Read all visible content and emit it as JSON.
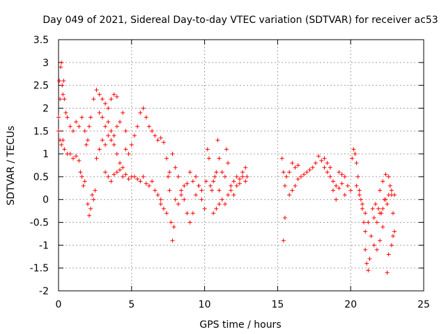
{
  "chart_data": {
    "type": "scatter",
    "title": "Day 049 of 2021, Sidereal Day-to-day VTEC variation (SDTVAR) for receiver ac53",
    "xlabel": "GPS time / hours",
    "ylabel": "SDTVAR / TECUs",
    "xlim": [
      0,
      25
    ],
    "ylim": [
      -2,
      3.5
    ],
    "xticks": [
      "0",
      "5",
      "10",
      "15",
      "20",
      "25"
    ],
    "yticks": [
      "-2",
      "-1.5",
      "-1",
      "-0.5",
      "0",
      "0.5",
      "1",
      "1.5",
      "2",
      "2.5",
      "3",
      "3.5"
    ],
    "grid": true,
    "marker": "+",
    "series": [
      {
        "name": "SDTVAR",
        "color": "#ff0000",
        "points": [
          [
            0.0,
            1.8
          ],
          [
            0.05,
            2.6
          ],
          [
            0.1,
            2.2
          ],
          [
            0.15,
            2.9
          ],
          [
            0.2,
            3.0
          ],
          [
            0.25,
            2.5
          ],
          [
            0.3,
            2.3
          ],
          [
            0.35,
            2.6
          ],
          [
            0.4,
            2.2
          ],
          [
            0.5,
            1.9
          ],
          [
            0.0,
            1.5
          ],
          [
            0.1,
            1.3
          ],
          [
            0.2,
            1.2
          ],
          [
            0.3,
            1.3
          ],
          [
            0.4,
            1.1
          ],
          [
            0.6,
            1.0
          ],
          [
            0.8,
            1.0
          ],
          [
            1.0,
            0.9
          ],
          [
            1.2,
            0.95
          ],
          [
            1.4,
            0.85
          ],
          [
            0.6,
            1.8
          ],
          [
            0.8,
            1.6
          ],
          [
            1.0,
            1.5
          ],
          [
            1.2,
            1.7
          ],
          [
            1.4,
            1.6
          ],
          [
            1.6,
            1.8
          ],
          [
            1.8,
            1.5
          ],
          [
            1.9,
            1.2
          ],
          [
            2.0,
            1.3
          ],
          [
            2.1,
            1.6
          ],
          [
            1.5,
            0.6
          ],
          [
            1.6,
            0.5
          ],
          [
            1.7,
            0.3
          ],
          [
            1.8,
            0.4
          ],
          [
            2.0,
            -0.1
          ],
          [
            2.1,
            -0.35
          ],
          [
            2.2,
            -0.2
          ],
          [
            2.3,
            0.1
          ],
          [
            2.4,
            0.0
          ],
          [
            2.5,
            0.2
          ],
          [
            2.2,
            1.8
          ],
          [
            2.4,
            2.2
          ],
          [
            2.6,
            2.4
          ],
          [
            2.8,
            2.3
          ],
          [
            3.0,
            2.2
          ],
          [
            3.2,
            2.1
          ],
          [
            3.4,
            2.0
          ],
          [
            3.6,
            2.2
          ],
          [
            3.8,
            2.3
          ],
          [
            4.0,
            2.25
          ],
          [
            2.6,
            0.9
          ],
          [
            2.8,
            1.1
          ],
          [
            3.0,
            1.3
          ],
          [
            3.2,
            1.2
          ],
          [
            3.4,
            1.4
          ],
          [
            3.6,
            1.3
          ],
          [
            3.8,
            1.2
          ],
          [
            4.0,
            1.0
          ],
          [
            4.2,
            0.8
          ],
          [
            4.4,
            0.7
          ],
          [
            2.8,
            1.9
          ],
          [
            3.0,
            1.8
          ],
          [
            3.2,
            1.6
          ],
          [
            3.4,
            1.7
          ],
          [
            3.6,
            1.5
          ],
          [
            3.8,
            1.4
          ],
          [
            4.0,
            1.6
          ],
          [
            4.2,
            1.7
          ],
          [
            4.4,
            1.9
          ],
          [
            4.6,
            1.5
          ],
          [
            3.2,
            0.6
          ],
          [
            3.4,
            0.5
          ],
          [
            3.6,
            0.4
          ],
          [
            3.8,
            0.55
          ],
          [
            4.0,
            0.6
          ],
          [
            4.2,
            0.65
          ],
          [
            4.4,
            0.5
          ],
          [
            4.6,
            0.55
          ],
          [
            4.8,
            0.45
          ],
          [
            5.0,
            0.5
          ],
          [
            4.6,
            1.1
          ],
          [
            4.8,
            1.0
          ],
          [
            5.0,
            1.2
          ],
          [
            5.2,
            1.4
          ],
          [
            5.4,
            1.6
          ],
          [
            5.6,
            1.9
          ],
          [
            5.8,
            2.0
          ],
          [
            6.0,
            1.8
          ],
          [
            6.2,
            1.6
          ],
          [
            6.4,
            1.5
          ],
          [
            5.2,
            0.5
          ],
          [
            5.4,
            0.45
          ],
          [
            5.6,
            0.4
          ],
          [
            5.8,
            0.5
          ],
          [
            6.0,
            0.35
          ],
          [
            6.2,
            0.3
          ],
          [
            6.4,
            0.4
          ],
          [
            6.6,
            0.2
          ],
          [
            6.8,
            0.1
          ],
          [
            7.0,
            0.0
          ],
          [
            6.6,
            1.4
          ],
          [
            6.8,
            1.3
          ],
          [
            7.0,
            1.35
          ],
          [
            7.2,
            1.25
          ],
          [
            7.4,
            0.9
          ],
          [
            7.5,
            0.5
          ],
          [
            7.6,
            0.2
          ],
          [
            7.7,
            -0.5
          ],
          [
            7.8,
            -0.9
          ],
          [
            7.9,
            -0.6
          ],
          [
            7.0,
            -0.1
          ],
          [
            7.2,
            -0.2
          ],
          [
            7.4,
            -0.3
          ],
          [
            7.6,
            0.6
          ],
          [
            7.8,
            1.0
          ],
          [
            8.0,
            0.7
          ],
          [
            8.2,
            0.5
          ],
          [
            8.4,
            0.2
          ],
          [
            8.6,
            0.3
          ],
          [
            8.8,
            0.35
          ],
          [
            8.0,
            0.0
          ],
          [
            8.2,
            -0.1
          ],
          [
            8.4,
            0.1
          ],
          [
            8.6,
            0.0
          ],
          [
            8.8,
            -0.3
          ],
          [
            9.0,
            -0.5
          ],
          [
            9.2,
            -0.3
          ],
          [
            9.4,
            0.1
          ],
          [
            9.6,
            0.3
          ],
          [
            9.8,
            0.2
          ],
          [
            9.0,
            0.6
          ],
          [
            9.2,
            0.4
          ],
          [
            9.4,
            0.5
          ],
          [
            9.6,
            0.3
          ],
          [
            9.8,
            0.0
          ],
          [
            10.0,
            -0.2
          ],
          [
            10.1,
            0.4
          ],
          [
            10.2,
            1.1
          ],
          [
            10.3,
            0.9
          ],
          [
            10.4,
            0.3
          ],
          [
            10.5,
            0.2
          ],
          [
            10.6,
            0.4
          ],
          [
            10.7,
            0.5
          ],
          [
            10.8,
            0.6
          ],
          [
            10.9,
            1.3
          ],
          [
            11.0,
            0.9
          ],
          [
            11.2,
            0.6
          ],
          [
            11.4,
            0.5
          ],
          [
            11.5,
            1.1
          ],
          [
            11.6,
            0.8
          ],
          [
            11.8,
            0.3
          ],
          [
            12.0,
            0.4
          ],
          [
            12.2,
            0.5
          ],
          [
            12.4,
            0.45
          ],
          [
            12.6,
            0.6
          ],
          [
            12.8,
            0.7
          ],
          [
            12.9,
            0.5
          ],
          [
            11.0,
            0.2
          ],
          [
            11.2,
            0.0
          ],
          [
            11.4,
            -0.1
          ],
          [
            11.6,
            0.1
          ],
          [
            11.8,
            0.2
          ],
          [
            12.0,
            0.1
          ],
          [
            12.2,
            0.3
          ],
          [
            12.4,
            0.35
          ],
          [
            12.6,
            0.5
          ],
          [
            12.8,
            0.4
          ],
          [
            10.6,
            -0.3
          ],
          [
            10.8,
            -0.2
          ],
          [
            11.0,
            -0.1
          ],
          [
            15.3,
            0.9
          ],
          [
            15.4,
            0.6
          ],
          [
            15.5,
            -0.4
          ],
          [
            15.4,
            -0.9
          ],
          [
            15.5,
            0.3
          ],
          [
            15.6,
            0.5
          ],
          [
            15.8,
            0.6
          ],
          [
            16.0,
            0.8
          ],
          [
            16.2,
            0.7
          ],
          [
            16.4,
            0.75
          ],
          [
            15.8,
            0.1
          ],
          [
            16.0,
            0.2
          ],
          [
            16.2,
            0.3
          ],
          [
            16.4,
            0.45
          ],
          [
            16.6,
            0.5
          ],
          [
            16.8,
            0.55
          ],
          [
            17.0,
            0.6
          ],
          [
            17.2,
            0.65
          ],
          [
            17.4,
            0.7
          ],
          [
            17.6,
            0.8
          ],
          [
            17.8,
            0.95
          ],
          [
            18.0,
            0.85
          ],
          [
            18.2,
            0.7
          ],
          [
            18.4,
            0.6
          ],
          [
            18.6,
            0.5
          ],
          [
            18.8,
            0.4
          ],
          [
            19.0,
            0.3
          ],
          [
            19.2,
            0.6
          ],
          [
            19.4,
            0.55
          ],
          [
            19.6,
            0.5
          ],
          [
            18.2,
            0.9
          ],
          [
            18.4,
            0.8
          ],
          [
            18.6,
            0.7
          ],
          [
            18.8,
            0.2
          ],
          [
            19.0,
            0.0
          ],
          [
            19.2,
            0.25
          ],
          [
            19.4,
            0.35
          ],
          [
            19.6,
            0.1
          ],
          [
            19.8,
            0.3
          ],
          [
            20.0,
            0.2
          ],
          [
            20.1,
            0.9
          ],
          [
            20.2,
            1.1
          ],
          [
            20.3,
            1.0
          ],
          [
            20.4,
            0.8
          ],
          [
            20.5,
            0.5
          ],
          [
            20.6,
            0.2
          ],
          [
            20.7,
            0.0
          ],
          [
            20.8,
            -0.2
          ],
          [
            20.9,
            -0.5
          ],
          [
            21.0,
            -0.7
          ],
          [
            20.4,
            0.3
          ],
          [
            20.6,
            0.1
          ],
          [
            20.8,
            -0.1
          ],
          [
            21.0,
            -0.3
          ],
          [
            21.2,
            -0.5
          ],
          [
            21.4,
            -0.8
          ],
          [
            21.6,
            -1.0
          ],
          [
            21.8,
            -1.1
          ],
          [
            22.0,
            -0.9
          ],
          [
            22.2,
            -0.6
          ],
          [
            21.0,
            -1.1
          ],
          [
            21.1,
            -1.4
          ],
          [
            21.2,
            -1.55
          ],
          [
            21.3,
            -1.3
          ],
          [
            21.5,
            -0.2
          ],
          [
            21.7,
            -0.1
          ],
          [
            21.9,
            -0.2
          ],
          [
            22.1,
            -0.3
          ],
          [
            22.3,
            0.0
          ],
          [
            22.5,
            -0.1
          ],
          [
            22.0,
            0.2
          ],
          [
            22.2,
            0.4
          ],
          [
            22.4,
            0.55
          ],
          [
            22.6,
            0.5
          ],
          [
            22.7,
            0.3
          ],
          [
            22.8,
            0.1
          ],
          [
            22.9,
            -0.3
          ],
          [
            23.0,
            -0.7
          ],
          [
            22.5,
            -1.6
          ],
          [
            22.6,
            -1.2
          ],
          [
            22.8,
            -1.0
          ],
          [
            22.9,
            -0.8
          ],
          [
            21.6,
            -0.4
          ],
          [
            21.8,
            -0.5
          ],
          [
            22.0,
            -0.3
          ],
          [
            22.2,
            -0.2
          ],
          [
            22.4,
            0.0
          ],
          [
            22.6,
            0.1
          ],
          [
            22.8,
            0.2
          ],
          [
            23.0,
            0.1
          ]
        ]
      }
    ]
  }
}
